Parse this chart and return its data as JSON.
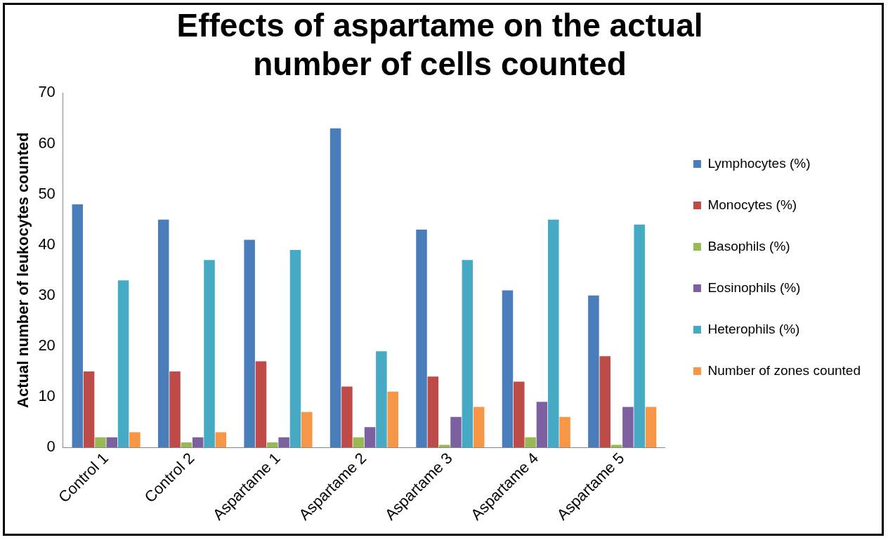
{
  "chart_data": {
    "type": "bar",
    "title": "Effects of aspartame on the actual number of cells counted",
    "ylabel": "Actual number of leukocytes counted",
    "categories": [
      "Control 1",
      "Control 2",
      "Aspartame 1",
      "Aspartame 2",
      "Aspartame 3",
      "Aspartame 4",
      "Aspartame 5"
    ],
    "series": [
      {
        "name": "Lymphocytes (%)",
        "color": "#4a7ebb",
        "values": [
          48,
          45,
          41,
          63,
          43,
          31,
          30
        ]
      },
      {
        "name": "Monocytes (%)",
        "color": "#be4b48",
        "values": [
          15,
          15,
          17,
          12,
          14,
          13,
          18
        ]
      },
      {
        "name": "Basophils (%)",
        "color": "#98b954",
        "values": [
          2,
          1,
          1,
          2,
          0.5,
          2,
          0.5
        ]
      },
      {
        "name": "Eosinophils (%)",
        "color": "#7d60a0",
        "values": [
          2,
          2,
          2,
          4,
          6,
          9,
          8
        ]
      },
      {
        "name": "Heterophils (%)",
        "color": "#46aac5",
        "values": [
          33,
          37,
          39,
          19,
          37,
          45,
          44
        ]
      },
      {
        "name": "Number of zones counted",
        "color": "#f79646",
        "values": [
          3,
          3,
          7,
          11,
          8,
          6,
          8
        ]
      }
    ],
    "ylim": [
      0,
      70
    ],
    "yticks": [
      0,
      10,
      20,
      30,
      40,
      50,
      60,
      70
    ],
    "grid": false,
    "legend": "right"
  }
}
